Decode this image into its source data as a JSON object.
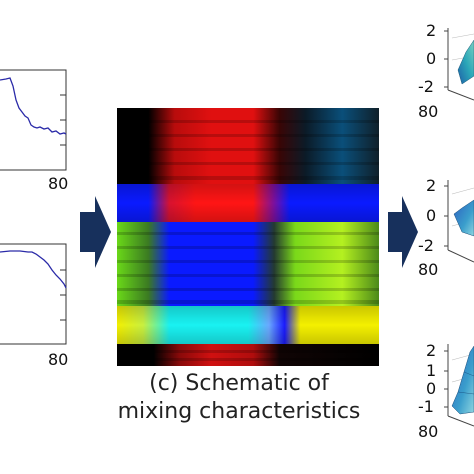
{
  "caption": {
    "line1": "(c) Schematic of",
    "line2": "mixing characteristics"
  },
  "left_plots": {
    "top": {
      "x_tick": "80"
    },
    "bottom": {
      "x_tick": "80"
    }
  },
  "right_plots": {
    "top": {
      "ticks": [
        "2",
        "0",
        "-2",
        "80"
      ]
    },
    "middle": {
      "ticks": [
        "2",
        "0",
        "-2",
        "80"
      ]
    },
    "bottom": {
      "ticks": [
        "2",
        "1",
        "0",
        "-1",
        "80"
      ]
    }
  },
  "colors": {
    "arrow": "#17305c",
    "line": "#2a2aa8",
    "red": "#e01010",
    "blue": "#0a1aff",
    "green": "#8ee81a",
    "yellow": "#f4f000",
    "cyan": "#19f2f2",
    "surface": "#2aa6b8"
  }
}
